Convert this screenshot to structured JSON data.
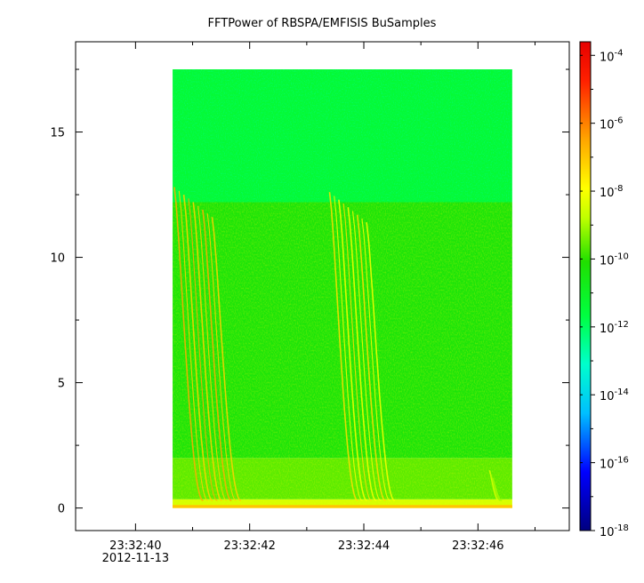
{
  "chart_data": {
    "type": "heatmap",
    "title": "FFTPower of RBSPA/EMFISIS  BuSamples",
    "xlabel": "",
    "ylabel": "",
    "x_ticks": [
      {
        "value": 40,
        "label": "23:32:40",
        "sublabel": "2012-11-13"
      },
      {
        "value": 42,
        "label": "23:32:42",
        "sublabel": ""
      },
      {
        "value": 44,
        "label": "23:32:44",
        "sublabel": ""
      },
      {
        "value": 46,
        "label": "23:32:46",
        "sublabel": ""
      }
    ],
    "x_minor_ticks": [
      41,
      43,
      45,
      47
    ],
    "xlim": [
      38.95,
      47.6
    ],
    "y_ticks": [
      0,
      5,
      10,
      15
    ],
    "y_minor_ticks": [
      2.5,
      7.5,
      12.5,
      17.5
    ],
    "ylim": [
      -0.9,
      18.6
    ],
    "data_extent": {
      "x": [
        40.65,
        46.6
      ],
      "y": [
        0,
        17.5
      ]
    },
    "background_level": {
      "description_free": true,
      "rows": [
        {
          "y": [
            0,
            0.35
          ],
          "log10_power": -8.5
        },
        {
          "y": [
            0.35,
            2.0
          ],
          "log10_power": -9.6
        },
        {
          "y": [
            2.0,
            12.2
          ],
          "log10_power": -10.3
        },
        {
          "y": [
            12.2,
            17.5
          ],
          "log10_power": -11.4
        }
      ]
    },
    "chorus_bursts": [
      {
        "x_start": 40.68,
        "x_end": 41.6,
        "y_top": 12.5,
        "log10_power": -7.2
      },
      {
        "x_start": 43.4,
        "x_end": 44.3,
        "y_top": 12.3,
        "log10_power": -8.0
      },
      {
        "x_start": 46.2,
        "x_end": 46.5,
        "y_top": 1.2,
        "log10_power": -9.0
      }
    ],
    "colorbar": {
      "scale": "log",
      "range": [
        -18,
        -3.6
      ],
      "ticks": [
        {
          "exp": -4,
          "label": "10",
          "sup": "-4"
        },
        {
          "exp": -6,
          "label": "10",
          "sup": "-6"
        },
        {
          "exp": -8,
          "label": "10",
          "sup": "-8"
        },
        {
          "exp": -10,
          "label": "10",
          "sup": "-10"
        },
        {
          "exp": -12,
          "label": "10",
          "sup": "-12"
        },
        {
          "exp": -14,
          "label": "10",
          "sup": "-14"
        },
        {
          "exp": -16,
          "label": "10",
          "sup": "-16"
        },
        {
          "exp": -18,
          "label": "10",
          "sup": "-18"
        }
      ],
      "colors": [
        "#00007f",
        "#0000ff",
        "#00bfff",
        "#00ffcc",
        "#00e000",
        "#7fff00",
        "#ffff00",
        "#ffa500",
        "#ff0000",
        "#e60000"
      ]
    }
  }
}
